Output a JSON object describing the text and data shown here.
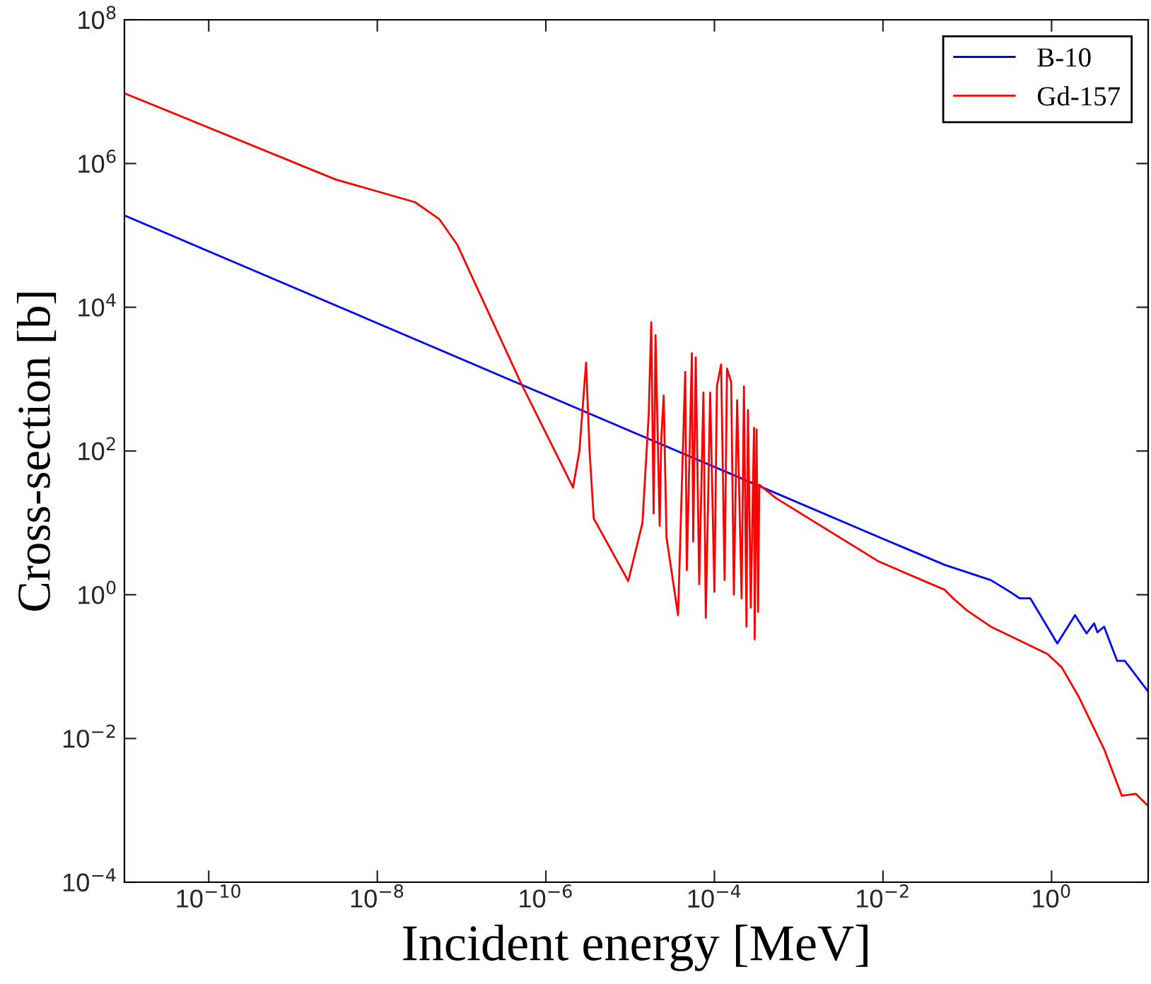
{
  "chart_data": {
    "type": "line",
    "xlabel": "Incident energy [MeV]",
    "ylabel": "Cross-section [b]",
    "log": "xy",
    "grid": false,
    "legend": "top right",
    "xlim": [
      1e-11,
      14
    ],
    "ylim": [
      0.0001,
      100000000
    ],
    "xticks": [
      {
        "value": 1e-10,
        "label": "10$^{−10}$"
      },
      {
        "value": 1e-08,
        "label": "10$^{−8}$"
      },
      {
        "value": 1e-06,
        "label": "10$^{−6}$"
      },
      {
        "value": 0.0001,
        "label": "10$^{−4}$"
      },
      {
        "value": 0.01,
        "label": "10$^{−2}$"
      },
      {
        "value": 1,
        "label": "10$^{0}$"
      }
    ],
    "yticks": [
      {
        "value": 0.0001,
        "label": "10$^{−4}$"
      },
      {
        "value": 0.01,
        "label": "10$^{−2}$"
      },
      {
        "value": 1,
        "label": "10$^{0}$"
      },
      {
        "value": 100,
        "label": "10$^{2}$"
      },
      {
        "value": 10000,
        "label": "10$^{4}$"
      },
      {
        "value": 1000000,
        "label": "10$^{6}$"
      },
      {
        "value": 100000000,
        "label": "10$^{8}$"
      }
    ],
    "series": [
      {
        "name": "B-10",
        "color": "#0000ff",
        "x": [
          1e-11,
          0.01,
          0.054,
          0.19,
          0.32,
          0.42,
          0.56,
          1.17,
          1.9,
          2.6,
          3.2,
          3.5,
          4.2,
          6.0,
          7.4,
          14
        ],
        "values": [
          190000,
          6.0,
          2.6,
          1.6,
          1.1,
          0.89,
          0.89,
          0.21,
          0.52,
          0.29,
          0.4,
          0.3,
          0.36,
          0.12,
          0.12,
          0.045
        ]
      },
      {
        "name": "Gd-157",
        "color": "#ff0000",
        "x": [
          1e-11,
          3.2e-09,
          2.8e-08,
          5.4e-08,
          8.9e-08,
          5e-07,
          2.1e-06,
          2.5e-06,
          3e-06,
          3.3e-06,
          3.7e-06,
          9.5e-06,
          1.4e-05,
          1.66e-05,
          1.78e-05,
          1.9e-05,
          2e-05,
          2.24e-05,
          2.34e-05,
          2.5e-05,
          2.7e-05,
          3.7e-05,
          4.5e-05,
          4.7e-05,
          5.4e-05,
          5.6e-05,
          6e-05,
          6.6e-05,
          7.4e-05,
          7.9e-05,
          8.9e-05,
          0.0001,
          0.000107,
          0.00012,
          0.000132,
          0.000141,
          0.000158,
          0.00017,
          0.000186,
          0.00021,
          0.000224,
          0.00024,
          0.00025,
          0.00027,
          0.000295,
          0.0003,
          0.000316,
          0.00033,
          0.00034,
          0.00054,
          0.0089,
          0.054,
          0.068,
          0.1,
          0.19,
          0.89,
          1.32,
          2.1,
          4.2,
          6.8,
          10,
          14
        ],
        "values": [
          9500000,
          600000,
          290000,
          170000,
          74000,
          910,
          31,
          100,
          1700,
          100,
          11.5,
          1.55,
          10,
          316,
          6200,
          13.5,
          4100,
          9.1,
          150,
          590,
          6.3,
          0.52,
          1260,
          2.2,
          2300,
          5.5,
          2000,
          1.4,
          650,
          0.48,
          650,
          1.1,
          790,
          1600,
          1.6,
          1400,
          910,
          1.0,
          510,
          0.89,
          790,
          0.36,
          370,
          0.66,
          210,
          0.24,
          200,
          0.58,
          34,
          22,
          2.9,
          1.17,
          0.89,
          0.6,
          0.36,
          0.15,
          0.098,
          0.038,
          0.0071,
          0.0016,
          0.0017,
          0.00115
        ]
      }
    ]
  }
}
